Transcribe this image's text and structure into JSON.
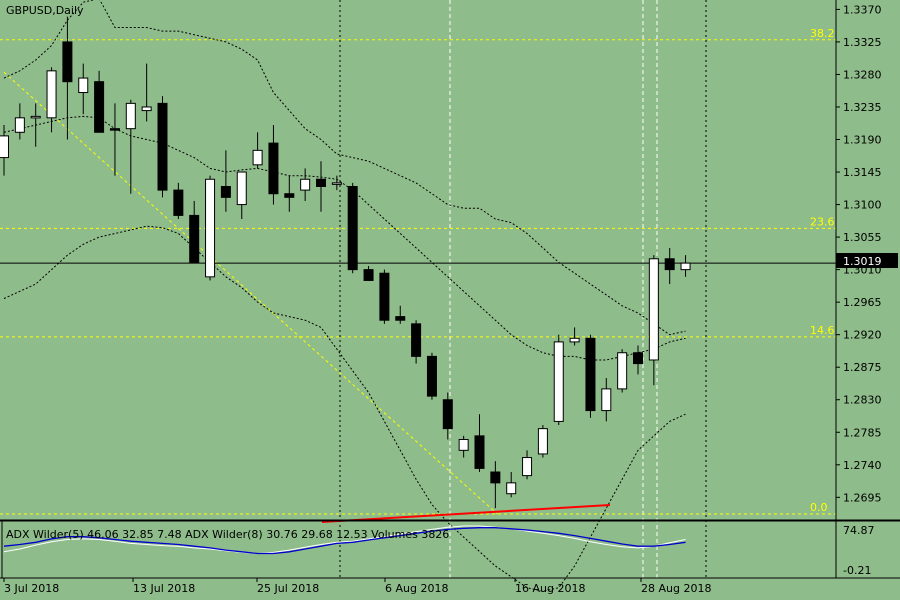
{
  "symbol_label": "GBPUSD,Daily",
  "indicator_label": "ADX Wilder(5) 46.06 32.85 7.48 ADX Wilder(8) 30.76 29.68 12.53 Volumes 3826",
  "current_price_label": "1.3019",
  "indicator_scale": {
    "top": "74.87",
    "bottom": "-0.21"
  },
  "colors": {
    "background": "#8fbc8b",
    "bull_fill": "#ffffff",
    "bear_fill": "#000000",
    "fib": "#ffff00",
    "adx_main": "#0000cd",
    "adx_secondary": "#ffffff",
    "trendline_red": "#ff0000"
  },
  "chart_data": {
    "type": "candlestick",
    "x_tick_labels": [
      "3 Jul 2018",
      "13 Jul 2018",
      "25 Jul 2018",
      "6 Aug 2018",
      "16 Aug 2018",
      "28 Aug 2018"
    ],
    "y_tick_labels": [
      "1.3370",
      "1.3325",
      "1.3280",
      "1.3235",
      "1.3190",
      "1.3145",
      "1.3100",
      "1.3055",
      "1.3010",
      "1.2965",
      "1.2920",
      "1.2875",
      "1.2830",
      "1.2785",
      "1.2740",
      "1.2695"
    ],
    "ylim": [
      1.2665,
      1.3383
    ],
    "current_price": 1.3019,
    "fib_levels": [
      {
        "label": "38.2",
        "price": 1.3328
      },
      {
        "label": "23.6",
        "price": 1.3067
      },
      {
        "label": "14.6",
        "price": 1.2917
      },
      {
        "label": "0.0",
        "price": 1.2672
      }
    ],
    "candles": [
      {
        "o": 1.3165,
        "h": 1.321,
        "l": 1.314,
        "c": 1.3195
      },
      {
        "o": 1.32,
        "h": 1.324,
        "l": 1.319,
        "c": 1.322
      },
      {
        "o": 1.322,
        "h": 1.324,
        "l": 1.318,
        "c": 1.3222
      },
      {
        "o": 1.322,
        "h": 1.329,
        "l": 1.32,
        "c": 1.3285
      },
      {
        "o": 1.3325,
        "h": 1.336,
        "l": 1.319,
        "c": 1.327
      },
      {
        "o": 1.3255,
        "h": 1.3295,
        "l": 1.3225,
        "c": 1.3275
      },
      {
        "o": 1.327,
        "h": 1.3285,
        "l": 1.32,
        "c": 1.32
      },
      {
        "o": 1.3205,
        "h": 1.324,
        "l": 1.314,
        "c": 1.3203
      },
      {
        "o": 1.3205,
        "h": 1.3245,
        "l": 1.3115,
        "c": 1.324
      },
      {
        "o": 1.323,
        "h": 1.3295,
        "l": 1.3215,
        "c": 1.3235
      },
      {
        "o": 1.324,
        "h": 1.325,
        "l": 1.311,
        "c": 1.312
      },
      {
        "o": 1.312,
        "h": 1.313,
        "l": 1.308,
        "c": 1.3085
      },
      {
        "o": 1.3085,
        "h": 1.3105,
        "l": 1.302,
        "c": 1.302
      },
      {
        "o": 1.3,
        "h": 1.314,
        "l": 1.2995,
        "c": 1.3135
      },
      {
        "o": 1.3125,
        "h": 1.3175,
        "l": 1.309,
        "c": 1.311
      },
      {
        "o": 1.31,
        "h": 1.3145,
        "l": 1.308,
        "c": 1.3145
      },
      {
        "o": 1.3155,
        "h": 1.32,
        "l": 1.315,
        "c": 1.3175
      },
      {
        "o": 1.3185,
        "h": 1.321,
        "l": 1.31,
        "c": 1.3115
      },
      {
        "o": 1.3115,
        "h": 1.314,
        "l": 1.309,
        "c": 1.311
      },
      {
        "o": 1.312,
        "h": 1.315,
        "l": 1.3105,
        "c": 1.3135
      },
      {
        "o": 1.3135,
        "h": 1.316,
        "l": 1.309,
        "c": 1.3125
      },
      {
        "o": 1.313,
        "h": 1.314,
        "l": 1.312,
        "c": 1.313
      },
      {
        "o": 1.3125,
        "h": 1.313,
        "l": 1.3005,
        "c": 1.301
      },
      {
        "o": 1.301,
        "h": 1.3015,
        "l": 1.2995,
        "c": 1.2995
      },
      {
        "o": 1.3005,
        "h": 1.301,
        "l": 1.2935,
        "c": 1.294
      },
      {
        "o": 1.2945,
        "h": 1.296,
        "l": 1.2935,
        "c": 1.294
      },
      {
        "o": 1.2935,
        "h": 1.294,
        "l": 1.288,
        "c": 1.289
      },
      {
        "o": 1.289,
        "h": 1.2895,
        "l": 1.283,
        "c": 1.2835
      },
      {
        "o": 1.283,
        "h": 1.284,
        "l": 1.2775,
        "c": 1.279
      },
      {
        "o": 1.276,
        "h": 1.278,
        "l": 1.275,
        "c": 1.2775
      },
      {
        "o": 1.278,
        "h": 1.281,
        "l": 1.273,
        "c": 1.2735
      },
      {
        "o": 1.273,
        "h": 1.2745,
        "l": 1.268,
        "c": 1.2715
      },
      {
        "o": 1.27,
        "h": 1.273,
        "l": 1.2695,
        "c": 1.2715
      },
      {
        "o": 1.2725,
        "h": 1.276,
        "l": 1.272,
        "c": 1.275
      },
      {
        "o": 1.2755,
        "h": 1.2795,
        "l": 1.275,
        "c": 1.279
      },
      {
        "o": 1.28,
        "h": 1.292,
        "l": 1.2795,
        "c": 1.291
      },
      {
        "o": 1.291,
        "h": 1.293,
        "l": 1.2905,
        "c": 1.2915
      },
      {
        "o": 1.2915,
        "h": 1.292,
        "l": 1.2805,
        "c": 1.2815
      },
      {
        "o": 1.2815,
        "h": 1.286,
        "l": 1.28,
        "c": 1.2845
      },
      {
        "o": 1.2845,
        "h": 1.29,
        "l": 1.284,
        "c": 1.2895
      },
      {
        "o": 1.2895,
        "h": 1.2905,
        "l": 1.2865,
        "c": 1.288
      },
      {
        "o": 1.2885,
        "h": 1.303,
        "l": 1.285,
        "c": 1.3025
      },
      {
        "o": 1.3025,
        "h": 1.304,
        "l": 1.299,
        "c": 1.301
      },
      {
        "o": 1.301,
        "h": 1.303,
        "l": 1.3,
        "c": 1.3019
      }
    ],
    "bollinger_upper": [
      1.3275,
      1.3285,
      1.33,
      1.332,
      1.3355,
      1.338,
      1.3385,
      1.3345,
      1.3345,
      1.3345,
      1.334,
      1.334,
      1.3335,
      1.333,
      1.3325,
      1.3315,
      1.33,
      1.3255,
      1.323,
      1.3205,
      1.319,
      1.317,
      1.3165,
      1.316,
      1.315,
      1.314,
      1.313,
      1.3115,
      1.31,
      1.3095,
      1.3095,
      1.308,
      1.3075,
      1.306,
      1.304,
      1.302,
      1.3005,
      1.299,
      1.2975,
      1.296,
      1.295,
      1.2935,
      1.292,
      1.2925
    ],
    "bollinger_lower": [
      1.297,
      1.298,
      1.299,
      1.301,
      1.303,
      1.3045,
      1.3055,
      1.306,
      1.3065,
      1.307,
      1.3068,
      1.306,
      1.304,
      1.302,
      1.3,
      1.2985,
      1.2965,
      1.295,
      1.2945,
      1.294,
      1.293,
      1.29,
      1.287,
      1.284,
      1.28,
      1.276,
      1.272,
      1.2685,
      1.266,
      1.264,
      1.262,
      1.26,
      1.2585,
      1.257,
      1.2565,
      1.257,
      1.26,
      1.264,
      1.268,
      1.272,
      1.276,
      1.278,
      1.28,
      1.281
    ],
    "moving_average": [
      1.32,
      1.3205,
      1.321,
      1.3215,
      1.322,
      1.3222,
      1.322,
      1.3205,
      1.3195,
      1.319,
      1.3185,
      1.3175,
      1.3165,
      1.315,
      1.3145,
      1.3148,
      1.315,
      1.3145,
      1.314,
      1.314,
      1.3138,
      1.3135,
      1.312,
      1.31,
      1.308,
      1.306,
      1.304,
      1.302,
      1.3,
      1.298,
      1.296,
      1.294,
      1.292,
      1.2905,
      1.2895,
      1.289,
      1.289,
      1.2885,
      1.2885,
      1.289,
      1.2895,
      1.29,
      1.291,
      1.2915
    ],
    "adx_main": [
      0.55,
      0.58,
      0.62,
      0.68,
      0.72,
      0.72,
      0.7,
      0.67,
      0.64,
      0.62,
      0.6,
      0.58,
      0.55,
      0.52,
      0.48,
      0.45,
      0.42,
      0.42,
      0.45,
      0.5,
      0.55,
      0.6,
      0.62,
      0.66,
      0.7,
      0.74,
      0.78,
      0.82,
      0.85,
      0.87,
      0.88,
      0.88,
      0.86,
      0.84,
      0.81,
      0.78,
      0.74,
      0.69,
      0.64,
      0.59,
      0.55,
      0.55,
      0.58,
      0.62
    ],
    "adx_secondary": [
      0.45,
      0.5,
      0.57,
      0.63,
      0.67,
      0.68,
      0.67,
      0.64,
      0.6,
      0.58,
      0.56,
      0.55,
      0.52,
      0.5,
      0.47,
      0.44,
      0.42,
      0.44,
      0.48,
      0.53,
      0.58,
      0.62,
      0.64,
      0.68,
      0.72,
      0.77,
      0.81,
      0.85,
      0.89,
      0.91,
      0.91,
      0.89,
      0.86,
      0.82,
      0.78,
      0.74,
      0.69,
      0.63,
      0.58,
      0.54,
      0.52,
      0.55,
      0.61,
      0.67
    ]
  }
}
